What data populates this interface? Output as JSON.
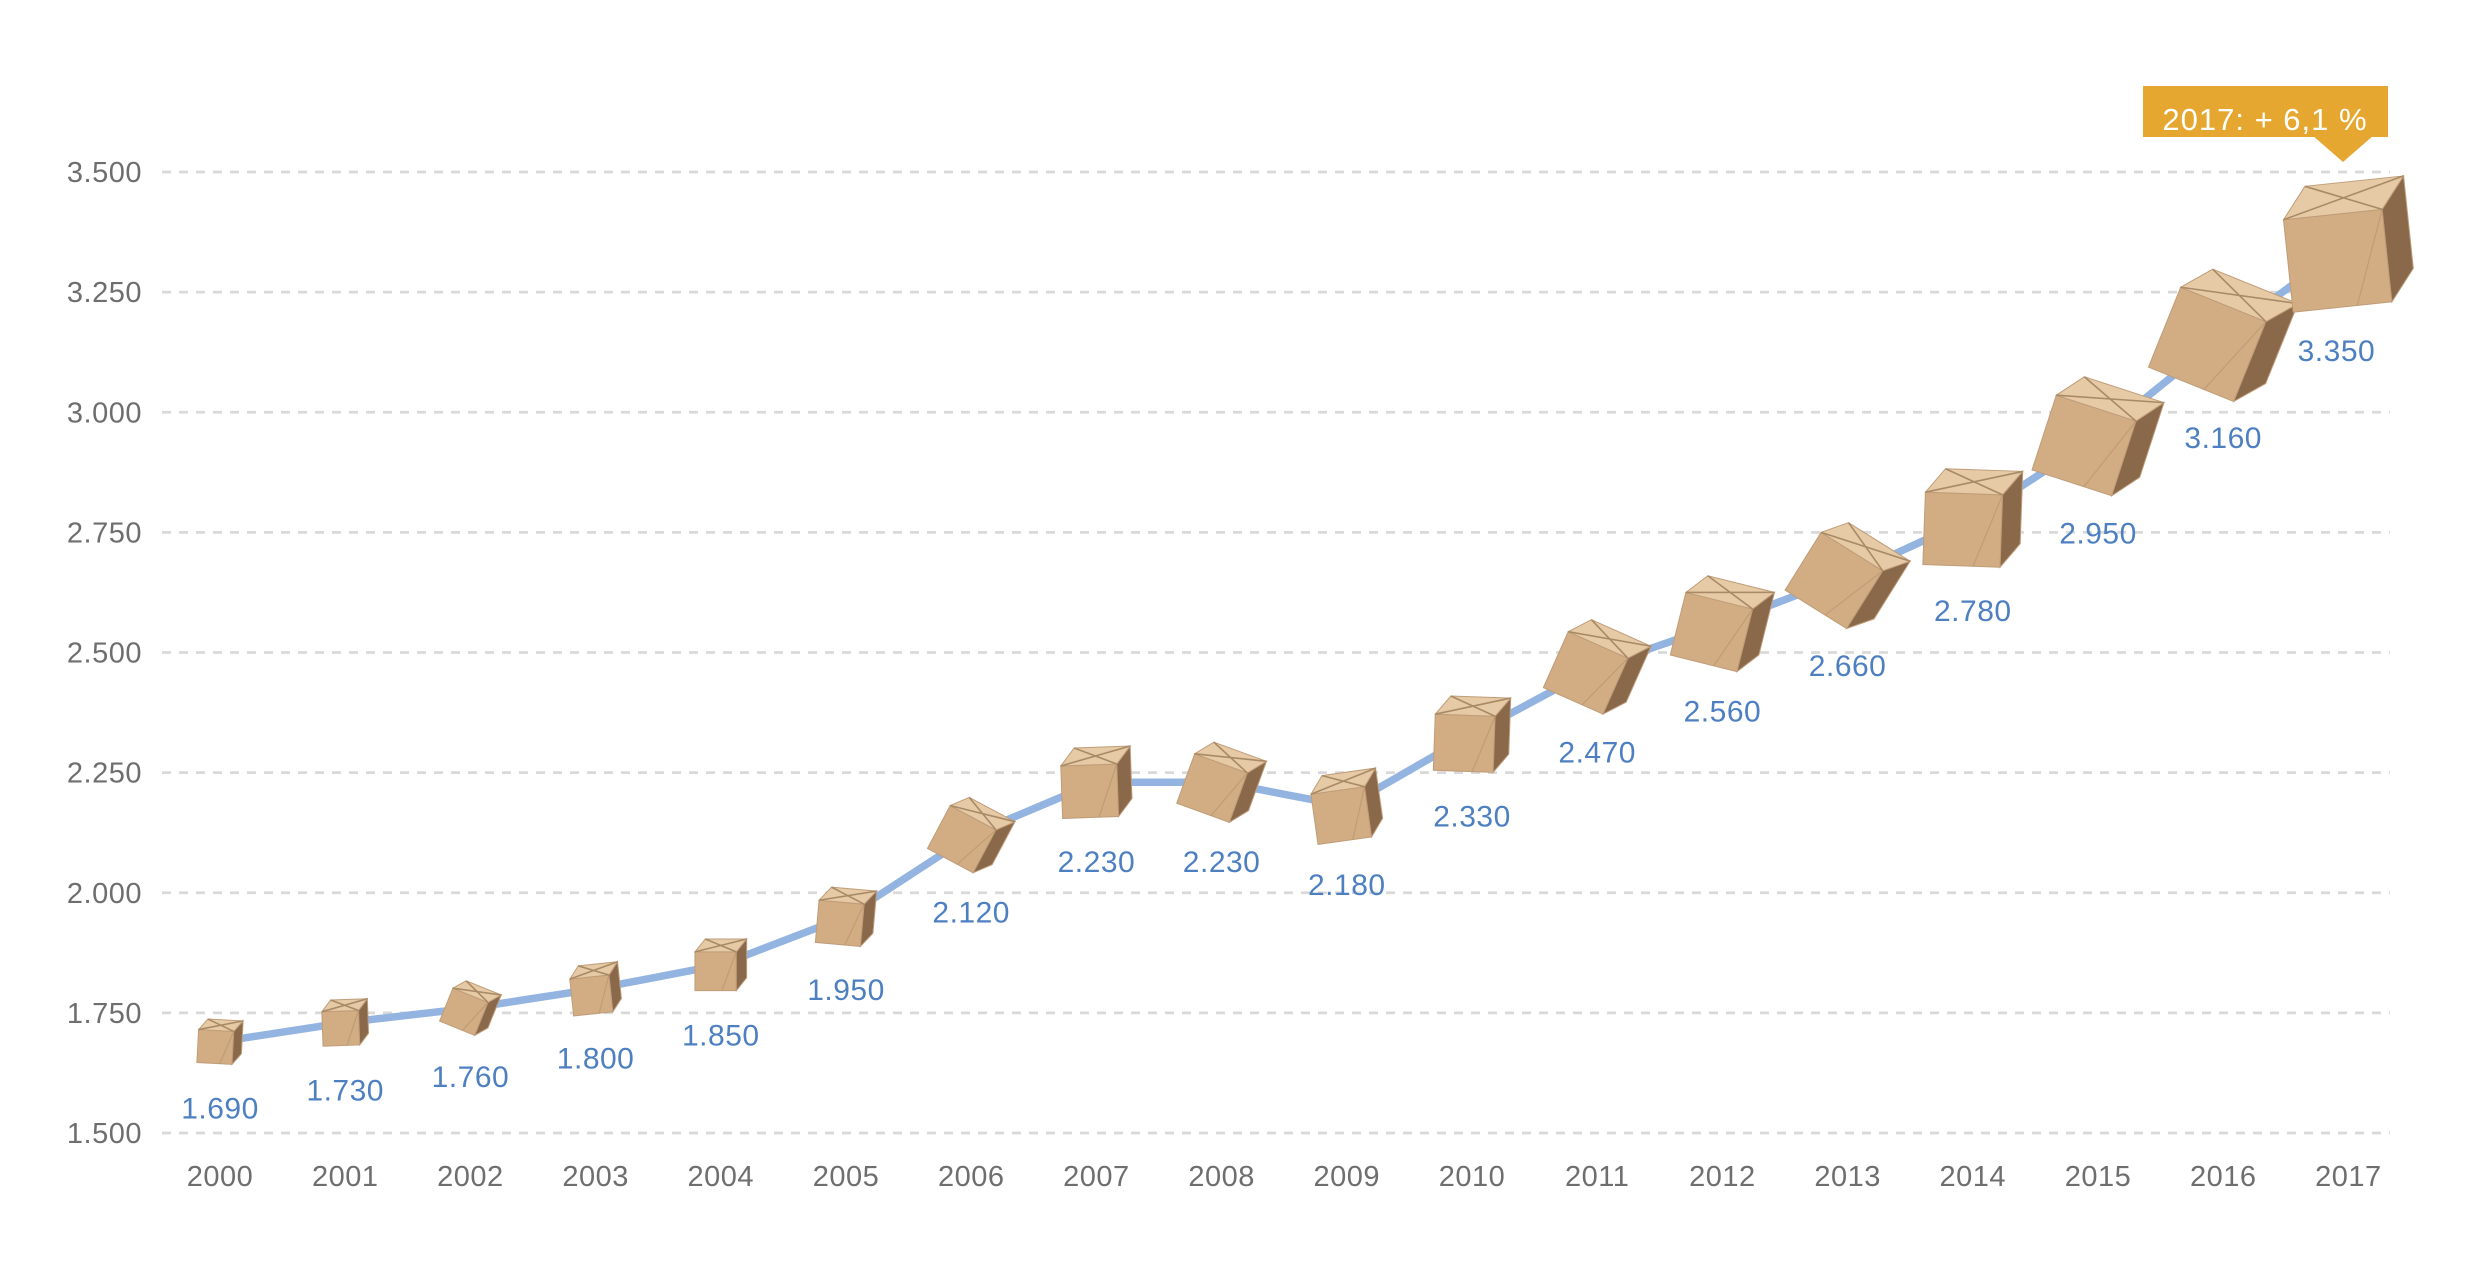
{
  "chart_data": {
    "type": "line",
    "title": "",
    "xlabel": "",
    "ylabel": "",
    "x": [
      2000,
      2001,
      2002,
      2003,
      2004,
      2005,
      2006,
      2007,
      2008,
      2009,
      2010,
      2011,
      2012,
      2013,
      2014,
      2015,
      2016,
      2017
    ],
    "x_tick_labels": [
      "2000",
      "2001",
      "2002",
      "2003",
      "2004",
      "2005",
      "2006",
      "2007",
      "2008",
      "2009",
      "2010",
      "2011",
      "2012",
      "2013",
      "2014",
      "2015",
      "2016",
      "2017"
    ],
    "values": [
      1690,
      1730,
      1760,
      1800,
      1850,
      1950,
      2120,
      2230,
      2230,
      2180,
      2330,
      2470,
      2560,
      2660,
      2780,
      2950,
      3160,
      3350
    ],
    "value_labels": [
      "1.690",
      "1.730",
      "1.760",
      "1.800",
      "1.850",
      "1.950",
      "2.120",
      "2.230",
      "2.230",
      "2.180",
      "2.330",
      "2.470",
      "2.560",
      "2.660",
      "2.780",
      "2.950",
      "3.160",
      "3.350"
    ],
    "ylim": [
      1500,
      3500
    ],
    "y_ticks": [
      1500,
      1750,
      2000,
      2250,
      2500,
      2750,
      3000,
      3250,
      3500
    ],
    "y_tick_labels": [
      "1.500",
      "1.750",
      "2.000",
      "2.250",
      "2.500",
      "2.750",
      "3.000",
      "3.250",
      "3.500"
    ],
    "grid": "horizontal-dashed",
    "legend": "none",
    "marker": "cardboard-box-icon",
    "marker_note": "parcel box photos as data markers, size grows with value",
    "annotation": {
      "text": "2017: + 6,1 %"
    },
    "colors": {
      "line": "#93b3e0",
      "value_label": "#4d7fc1",
      "axis_text": "#6e6e6e",
      "gridline": "#d9d9d9",
      "badge_bg": "#e5a72f",
      "badge_text": "#ffffff",
      "box_top": "#e6caa5",
      "box_front": "#d2ac83",
      "box_side": "#8a684a",
      "box_crease": "#a98a66",
      "box_outline": "#bf9d79"
    }
  }
}
